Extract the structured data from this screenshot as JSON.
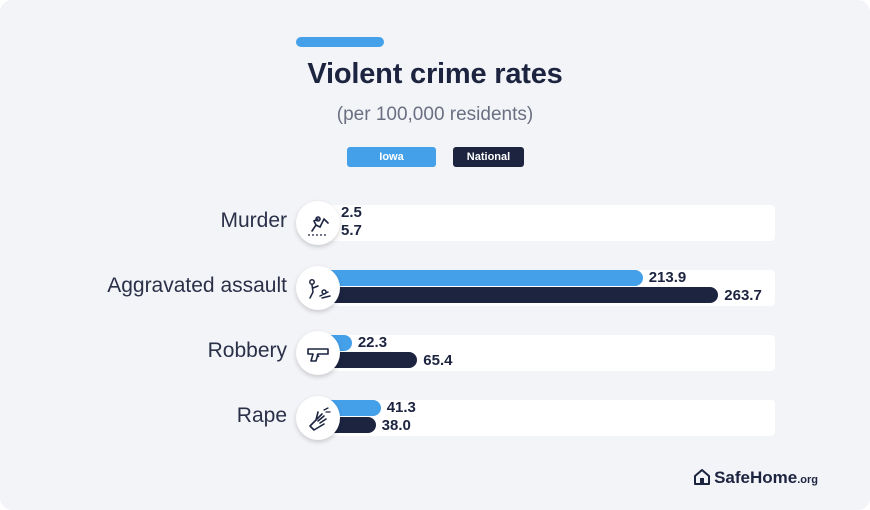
{
  "chart_data": {
    "type": "bar",
    "orientation": "horizontal",
    "title": "Violent crime rates",
    "subtitle": "(per 100,000 residents)",
    "categories": [
      "Murder",
      "Aggravated assault",
      "Robbery",
      "Rape"
    ],
    "series": [
      {
        "name": "Iowa",
        "color": "#45a0ea",
        "values": [
          2.5,
          213.9,
          22.3,
          41.3
        ]
      },
      {
        "name": "National",
        "color": "#1c2440",
        "values": [
          5.7,
          263.7,
          65.4,
          38.0
        ]
      }
    ],
    "value_labels": [
      [
        "2.5",
        "213.9",
        "22.3",
        "41.3"
      ],
      [
        "5.7",
        "263.7",
        "65.4",
        "38.0"
      ]
    ],
    "icons": [
      "crime-scene-icon",
      "assault-icon",
      "gun-icon",
      "hand-icon"
    ],
    "xlim": [
      0,
      400
    ],
    "legend_position": "top-center",
    "grid": false
  },
  "brand": {
    "name": "SafeHome",
    "suffix": ".org",
    "icon": "house-icon"
  },
  "colors": {
    "accent": "#45a0ea",
    "dark": "#1c2440",
    "background": "#f3f4f8"
  }
}
